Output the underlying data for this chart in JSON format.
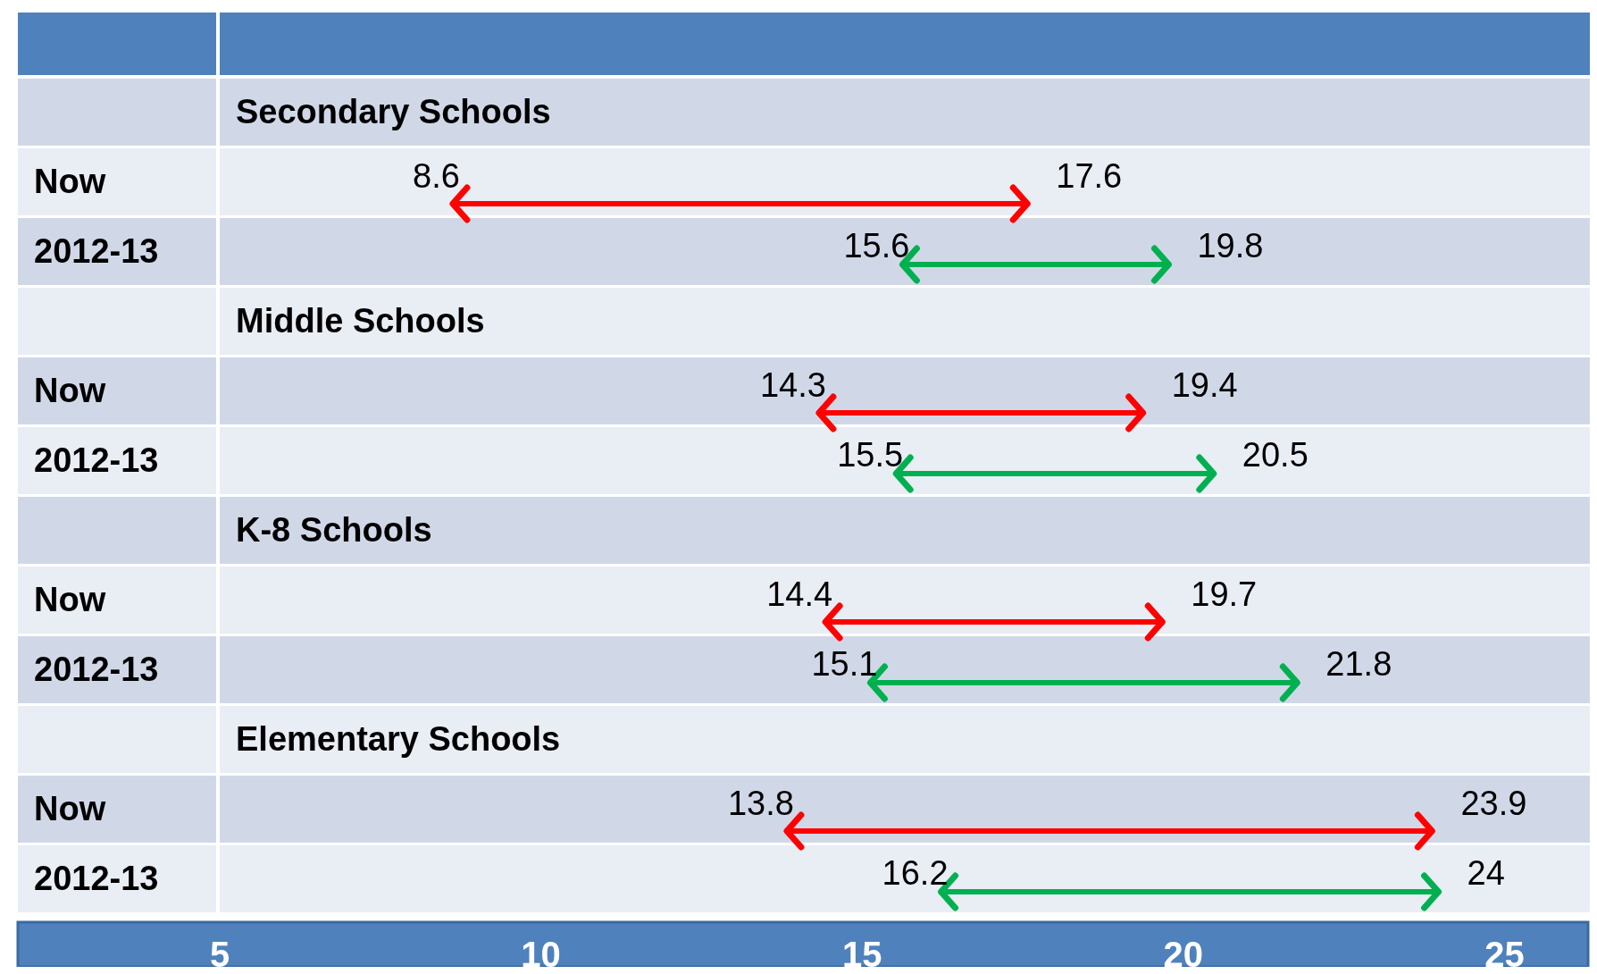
{
  "chart_data": {
    "type": "bar",
    "orientation": "horizontal",
    "categories": [
      "Secondary Schools",
      "Now",
      "2012-13",
      "Middle Schools",
      "Now",
      "2012-13",
      "K-8 Schools",
      "Now",
      "2012-13",
      "Elementary Schools",
      "Now",
      "2012-13"
    ],
    "base": [
      null,
      8.6,
      15.6,
      null,
      14.3,
      15.5,
      null,
      14.4,
      15.1,
      null,
      13.8,
      16.2
    ],
    "values": [
      null,
      9.0,
      4.2,
      null,
      5.1,
      5.0,
      null,
      5.3,
      6.7,
      null,
      10.1,
      7.8
    ],
    "colors": [
      null,
      "#ff0000",
      "#00b050",
      null,
      "#ff0000",
      "#00b050",
      null,
      "#ff0000",
      "#00b050",
      null,
      "#ff0000",
      "#00b050"
    ],
    "xlim": [
      5,
      26.3
    ],
    "xticks": [
      5,
      10,
      15,
      20,
      25
    ],
    "annotations": [
      "8.6",
      "17.6",
      "15.6",
      "19.8",
      "14.3",
      "19.4",
      "15.5",
      "20.5",
      "14.4",
      "19.7",
      "15.1",
      "21.8",
      "13.8",
      "23.9",
      "16.2",
      "24"
    ]
  }
}
